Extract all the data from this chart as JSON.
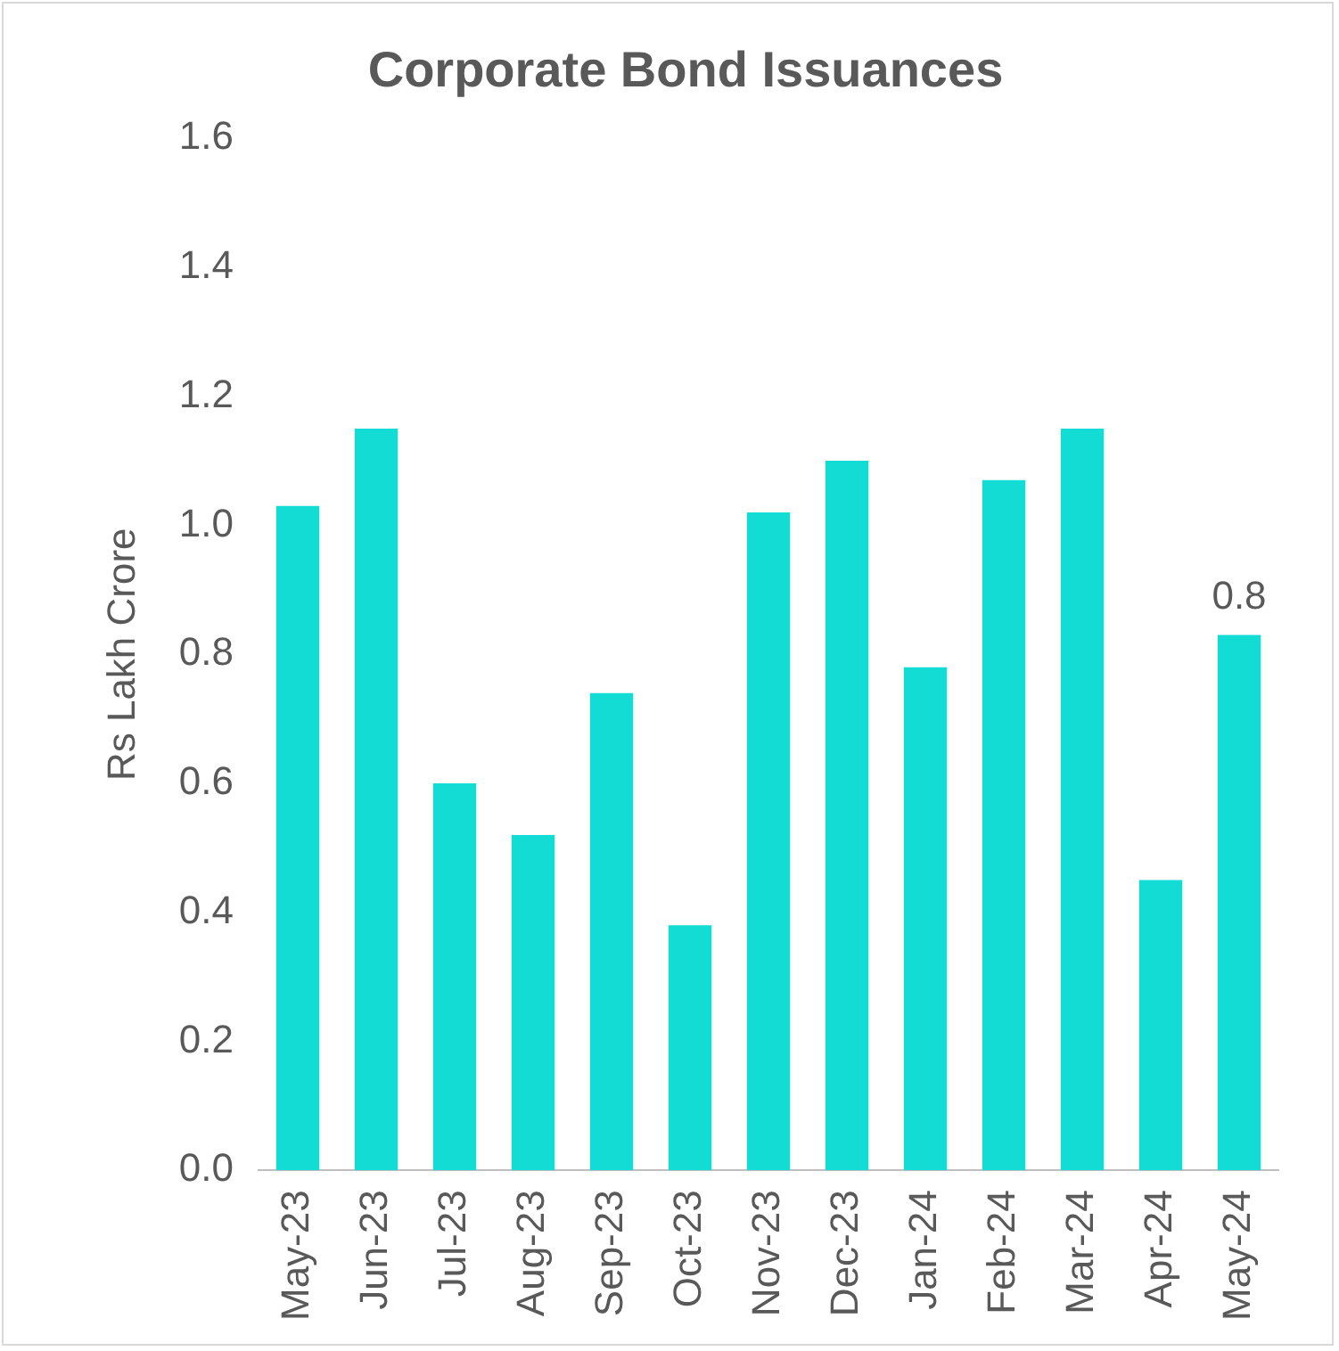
{
  "chart_data": {
    "type": "bar",
    "title": "Corporate Bond Issuances",
    "ylabel": "Rs Lakh Crore",
    "categories": [
      "May-23",
      "Jun-23",
      "Jul-23",
      "Aug-23",
      "Sep-23",
      "Oct-23",
      "Nov-23",
      "Dec-23",
      "Jan-24",
      "Feb-24",
      "Mar-24",
      "Apr-24",
      "May-24"
    ],
    "values": [
      1.03,
      1.15,
      0.6,
      0.52,
      0.74,
      0.38,
      1.02,
      1.1,
      0.78,
      1.07,
      1.15,
      0.45,
      0.83
    ],
    "value_labels": [
      null,
      null,
      null,
      null,
      null,
      null,
      null,
      null,
      null,
      null,
      null,
      null,
      "0.8"
    ],
    "color": "#13dcd4",
    "ylim": [
      0,
      1.6
    ],
    "yticks": [
      {
        "value": 0,
        "label": "0.0"
      },
      0.2,
      0.4,
      0.6,
      0.8,
      {
        "value": 1,
        "label": "1.0"
      },
      1.2,
      1.4,
      1.6
    ],
    "grid": false,
    "legend": false
  }
}
